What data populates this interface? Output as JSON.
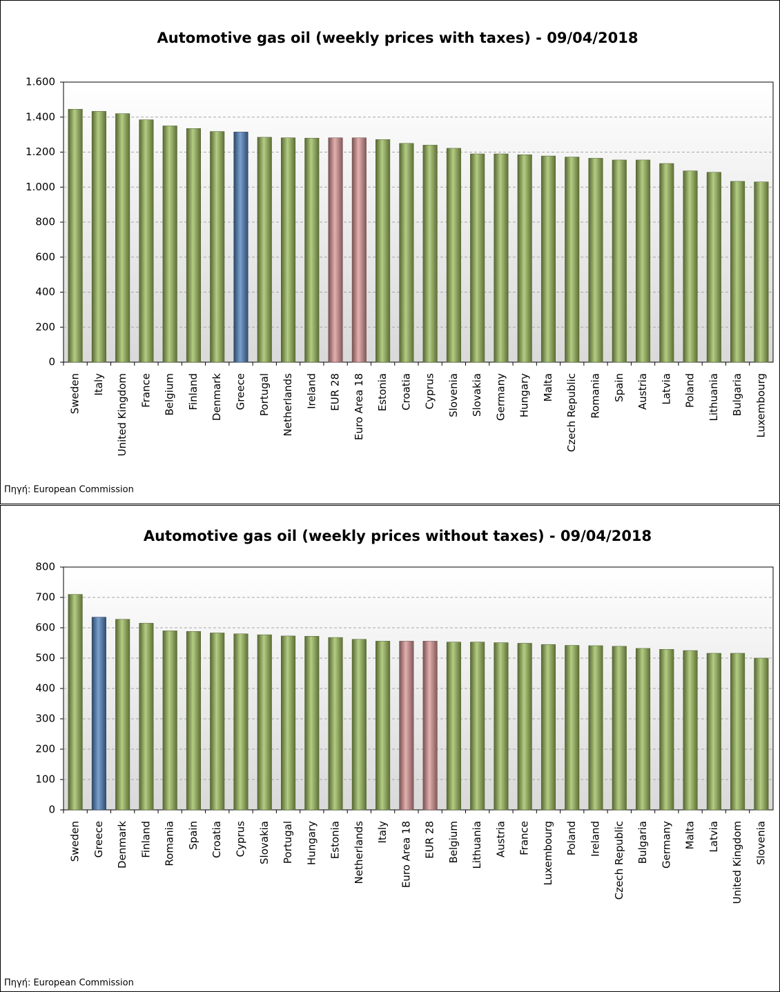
{
  "chart_data": [
    {
      "type": "bar",
      "title": "Automotive gas oil (weekly prices with taxes) - 09/04/2018",
      "categories": [
        "Sweden",
        "Italy",
        "United Kingdom",
        "France",
        "Belgium",
        "Finland",
        "Denmark",
        "Greece",
        "Portugal",
        "Netherlands",
        "Ireland",
        "EUR 28",
        "Euro Area 18",
        "Estonia",
        "Croatia",
        "Cyprus",
        "Slovenia",
        "Slovakia",
        "Germany",
        "Hungary",
        "Malta",
        "Czech Republic",
        "Romania",
        "Spain",
        "Austria",
        "Latvia",
        "Poland",
        "Lithuania",
        "Bulgaria",
        "Luxembourg"
      ],
      "values": [
        1445,
        1433,
        1420,
        1385,
        1350,
        1335,
        1318,
        1315,
        1285,
        1282,
        1280,
        1282,
        1282,
        1272,
        1250,
        1240,
        1222,
        1190,
        1190,
        1185,
        1178,
        1172,
        1165,
        1155,
        1155,
        1135,
        1093,
        1085,
        1033,
        1030
      ],
      "colors": [
        "#9bbb59",
        "#9bbb59",
        "#9bbb59",
        "#9bbb59",
        "#9bbb59",
        "#9bbb59",
        "#9bbb59",
        "#4f81bd",
        "#9bbb59",
        "#9bbb59",
        "#9bbb59",
        "#d99594",
        "#d99594",
        "#9bbb59",
        "#9bbb59",
        "#9bbb59",
        "#9bbb59",
        "#9bbb59",
        "#9bbb59",
        "#9bbb59",
        "#9bbb59",
        "#9bbb59",
        "#9bbb59",
        "#9bbb59",
        "#9bbb59",
        "#9bbb59",
        "#9bbb59",
        "#9bbb59",
        "#9bbb59",
        "#9bbb59"
      ],
      "ylim": [
        0,
        1600
      ],
      "yticks": [
        0,
        200,
        400,
        600,
        800,
        {
          "value": 1000,
          "label": "1.000"
        },
        {
          "value": 1200,
          "label": "1.200"
        },
        {
          "value": 1400,
          "label": "1.400"
        },
        {
          "value": 1600,
          "label": "1.600"
        }
      ],
      "grid": true,
      "source": "Πηγή: European Commission"
    },
    {
      "type": "bar",
      "title": "Automotive gas oil (weekly prices without taxes) - 09/04/2018",
      "categories": [
        "Sweden",
        "Greece",
        "Denmark",
        "Finland",
        "Romania",
        "Spain",
        "Croatia",
        "Cyprus",
        "Slovakia",
        "Portugal",
        "Hungary",
        "Estonia",
        "Netherlands",
        "Italy",
        "Euro Area 18",
        "EUR 28",
        "Belgium",
        "Lithuania",
        "Austria",
        "France",
        "Luxembourg",
        "Poland",
        "Ireland",
        "Czech Republic",
        "Bulgaria",
        "Germany",
        "Malta",
        "Latvia",
        "United Kingdom",
        "Slovenia"
      ],
      "values": [
        710,
        635,
        628,
        615,
        590,
        588,
        583,
        580,
        577,
        573,
        572,
        568,
        562,
        556,
        556,
        556,
        553,
        553,
        551,
        549,
        545,
        542,
        541,
        539,
        532,
        529,
        525,
        516,
        516,
        500
      ],
      "colors": [
        "#9bbb59",
        "#4f81bd",
        "#9bbb59",
        "#9bbb59",
        "#9bbb59",
        "#9bbb59",
        "#9bbb59",
        "#9bbb59",
        "#9bbb59",
        "#9bbb59",
        "#9bbb59",
        "#9bbb59",
        "#9bbb59",
        "#9bbb59",
        "#d99594",
        "#d99594",
        "#9bbb59",
        "#9bbb59",
        "#9bbb59",
        "#9bbb59",
        "#9bbb59",
        "#9bbb59",
        "#9bbb59",
        "#9bbb59",
        "#9bbb59",
        "#9bbb59",
        "#9bbb59",
        "#9bbb59",
        "#9bbb59",
        "#9bbb59"
      ],
      "ylim": [
        0,
        800
      ],
      "yticks": [
        0,
        100,
        200,
        300,
        400,
        500,
        600,
        700,
        800
      ],
      "grid": true,
      "source": "Πηγή: European Commission"
    }
  ]
}
